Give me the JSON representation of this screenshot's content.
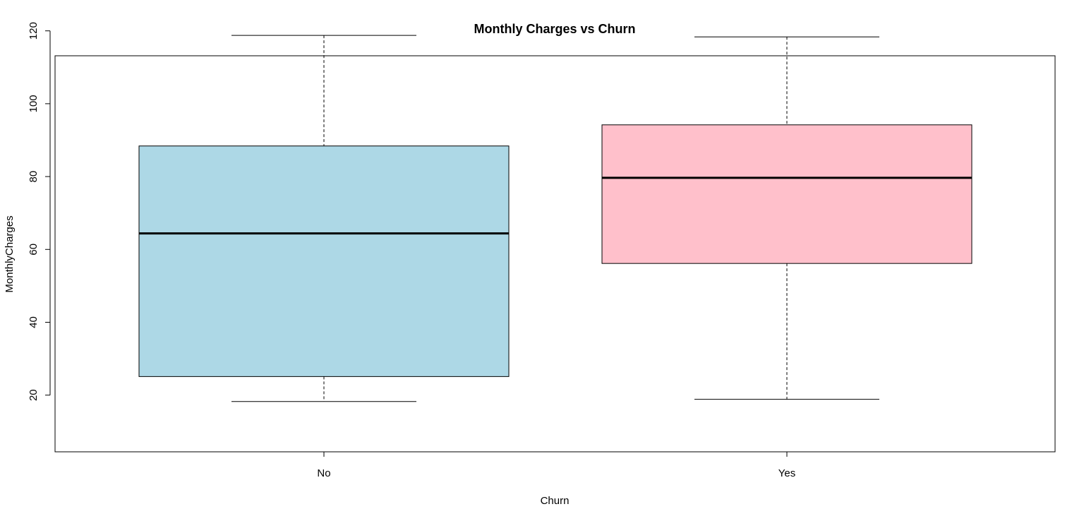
{
  "chart_data": {
    "type": "boxplot",
    "title": "Monthly Charges vs Churn",
    "xlabel": "Churn",
    "ylabel": "MonthlyCharges",
    "ylim": [
      14,
      123
    ],
    "yticks": [
      20,
      40,
      60,
      80,
      100,
      120
    ],
    "grid": false,
    "legend": "none",
    "categories": [
      "No",
      "Yes"
    ],
    "boxes": [
      {
        "category": "No",
        "whisker_low": 18.25,
        "q1": 25.1,
        "median": 64.4,
        "q3": 88.4,
        "whisker_high": 118.75,
        "fill": "#add8e6"
      },
      {
        "category": "Yes",
        "whisker_low": 18.85,
        "q1": 56.15,
        "median": 79.65,
        "q3": 94.2,
        "whisker_high": 118.35,
        "fill": "#ffc0cb"
      }
    ]
  }
}
